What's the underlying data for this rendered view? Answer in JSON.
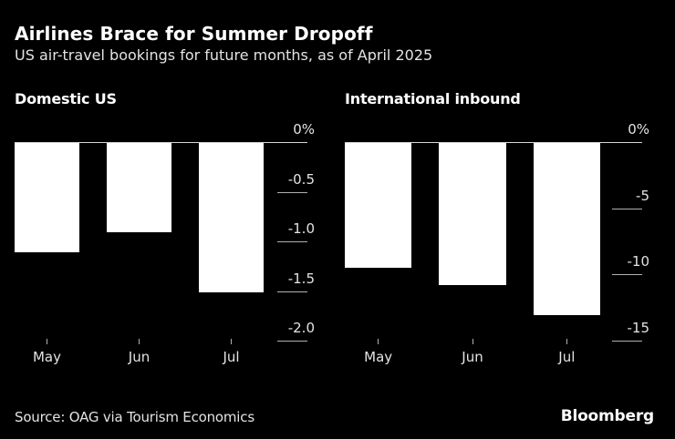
{
  "header": {
    "title": "Airlines Brace for Summer Dropoff",
    "subtitle": "US air-travel bookings for future months, as of April 2025"
  },
  "footer": {
    "source": "Source: OAG via Tourism Economics",
    "brand": "Bloomberg"
  },
  "colors": {
    "background": "#000000",
    "bar": "#ffffff",
    "text_primary": "#ffffff",
    "text_secondary": "#e3e3e3",
    "axis": "#b0b0b0",
    "zero_line": "#d6d6d6"
  },
  "chart_data": [
    {
      "type": "bar",
      "title": "Domestic US",
      "categories": [
        "May",
        "Jun",
        "Jul"
      ],
      "values": [
        -1.1,
        -0.9,
        -1.5
      ],
      "unit": "%",
      "ylim": [
        -2.0,
        0
      ],
      "yticks": [
        0,
        -0.5,
        -1.0,
        -1.5,
        -2.0
      ],
      "ytick_labels": [
        "0%",
        "-0.5",
        "-1.0",
        "-1.5",
        "-2.0"
      ],
      "xlabel": "",
      "ylabel": "",
      "grid": false,
      "legend": false,
      "bar_color": "#ffffff",
      "baseline": 0
    },
    {
      "type": "bar",
      "title": "International inbound",
      "categories": [
        "May",
        "Jun",
        "Jul"
      ],
      "values": [
        -9.4,
        -10.7,
        -13.0
      ],
      "unit": "%",
      "ylim": [
        -15,
        0
      ],
      "yticks": [
        0,
        -5,
        -10,
        -15
      ],
      "ytick_labels": [
        "0%",
        "-5",
        "-10",
        "-15"
      ],
      "xlabel": "",
      "ylabel": "",
      "grid": false,
      "legend": false,
      "bar_color": "#ffffff",
      "baseline": 0
    }
  ]
}
